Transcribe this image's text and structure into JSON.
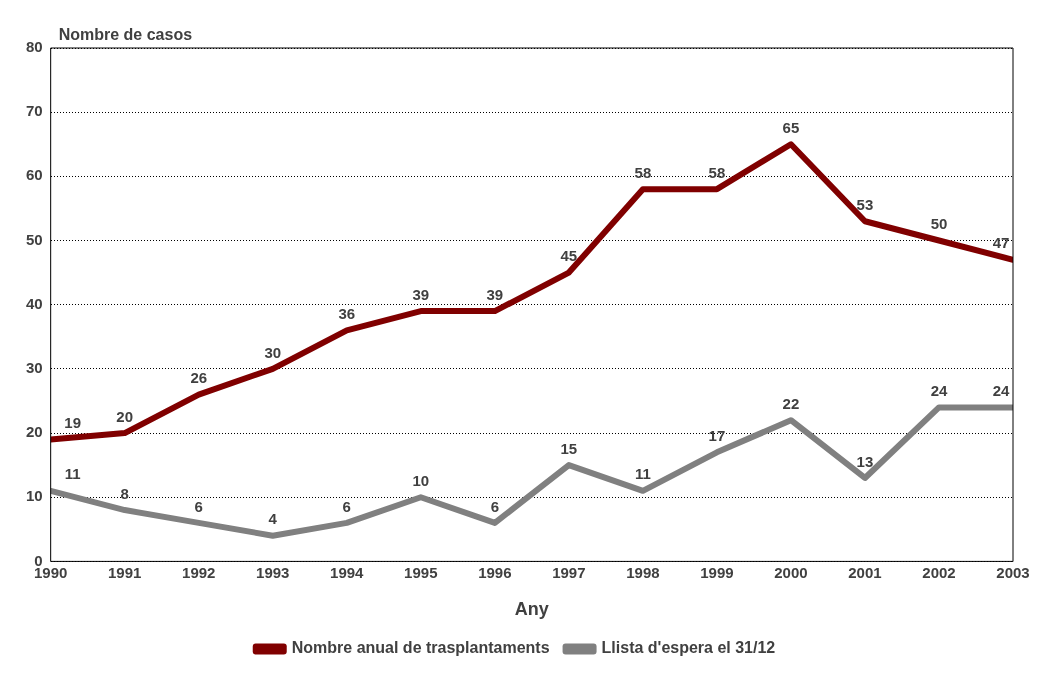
{
  "chart_data": {
    "type": "line",
    "ylabel": "Nombre de casos",
    "xlabel": "Any",
    "x": [
      1990,
      1991,
      1992,
      1993,
      1994,
      1995,
      1996,
      1997,
      1998,
      1999,
      2000,
      2001,
      2002,
      2003
    ],
    "series": [
      {
        "name": "Nombre anual de trasplantaments",
        "color": "#800000",
        "values": [
          19,
          20,
          26,
          30,
          36,
          39,
          39,
          45,
          58,
          58,
          65,
          53,
          50,
          47
        ]
      },
      {
        "name": "Llista d'espera el 31/12",
        "color": "#808080",
        "values": [
          11,
          8,
          6,
          4,
          6,
          10,
          6,
          15,
          11,
          17,
          22,
          13,
          24,
          24
        ]
      }
    ],
    "xlim": [
      1990,
      2003
    ],
    "xticks": [
      1990,
      1991,
      1992,
      1993,
      1994,
      1995,
      1996,
      1997,
      1998,
      1999,
      2000,
      2001,
      2002,
      2003
    ],
    "ylim": [
      0,
      80
    ],
    "yticks": [
      0,
      10,
      20,
      30,
      40,
      50,
      60,
      70,
      80
    ],
    "grid": "y",
    "legend": "bottom",
    "data_labels": true,
    "marker": "none",
    "line_style": "solid"
  }
}
